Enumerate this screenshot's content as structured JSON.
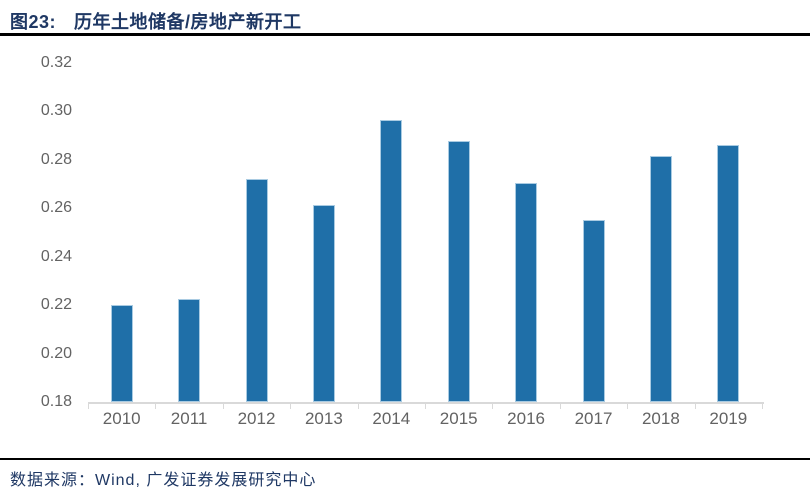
{
  "header": {
    "figure_label": "图23:",
    "title": "历年土地储备/房地产新开工"
  },
  "chart_data": {
    "type": "bar",
    "title": "历年土地储备/房地产新开工",
    "categories": [
      "2010",
      "2011",
      "2012",
      "2013",
      "2014",
      "2015",
      "2016",
      "2017",
      "2018",
      "2019"
    ],
    "values": [
      0.22,
      0.2225,
      0.272,
      0.2615,
      0.2965,
      0.288,
      0.2705,
      0.255,
      0.2815,
      0.286
    ],
    "xlabel": "",
    "ylabel": "",
    "ylim": [
      0.18,
      0.32
    ],
    "ytick_step": 0.02,
    "ytick_labels": [
      "0.32",
      "0.30",
      "0.28",
      "0.26",
      "0.24",
      "0.22",
      "0.20",
      "0.18"
    ],
    "grid": false,
    "legend": false
  },
  "footer": {
    "source": "数据来源：Wind, 广发证券发展研究中心"
  },
  "colors": {
    "title_text": "#1F3864",
    "rule": "#000000",
    "bar_fill": "#1F6FA8",
    "bar_border": "#A9CBE2",
    "axis_line": "#D9D9D9",
    "tick_label": "#636363"
  }
}
